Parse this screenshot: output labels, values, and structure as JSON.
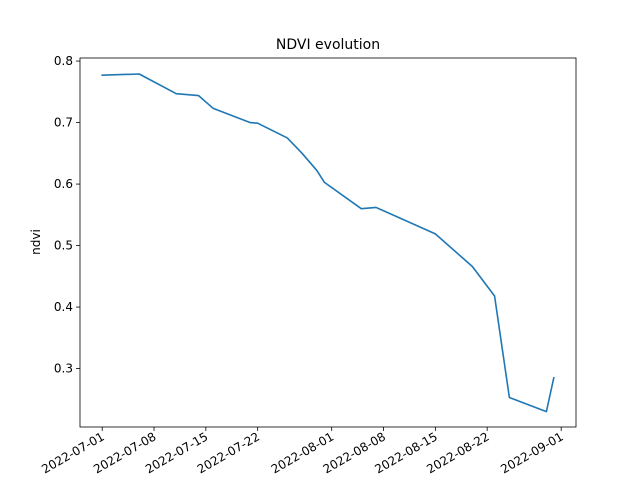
{
  "chart_data": {
    "type": "line",
    "title": "NDVI evolution",
    "xlabel": "",
    "ylabel": "ndvi",
    "x_type": "date",
    "xlim": [
      "2022-06-28",
      "2022-09-03"
    ],
    "ylim": [
      0.205,
      0.805
    ],
    "x_ticks": [
      "2022-07-01",
      "2022-07-08",
      "2022-07-15",
      "2022-07-22",
      "2022-08-01",
      "2022-08-08",
      "2022-08-15",
      "2022-08-22",
      "2022-09-01"
    ],
    "y_ticks": [
      "0.3",
      "0.4",
      "0.5",
      "0.6",
      "0.7",
      "0.8"
    ],
    "grid": false,
    "colors": {
      "line": "#1f77b4"
    },
    "series": [
      {
        "x": [
          "2022-07-01",
          "2022-07-06",
          "2022-07-11",
          "2022-07-14",
          "2022-07-16",
          "2022-07-21",
          "2022-07-22",
          "2022-07-26",
          "2022-07-28",
          "2022-07-30",
          "2022-07-31",
          "2022-08-05",
          "2022-08-07",
          "2022-08-15",
          "2022-08-20",
          "2022-08-23",
          "2022-08-25",
          "2022-08-30",
          "2022-08-31"
        ],
        "y": [
          0.777,
          0.779,
          0.747,
          0.744,
          0.723,
          0.7,
          0.699,
          0.675,
          0.65,
          0.622,
          0.603,
          0.56,
          0.562,
          0.519,
          0.466,
          0.418,
          0.253,
          0.23,
          0.285
        ]
      }
    ]
  }
}
